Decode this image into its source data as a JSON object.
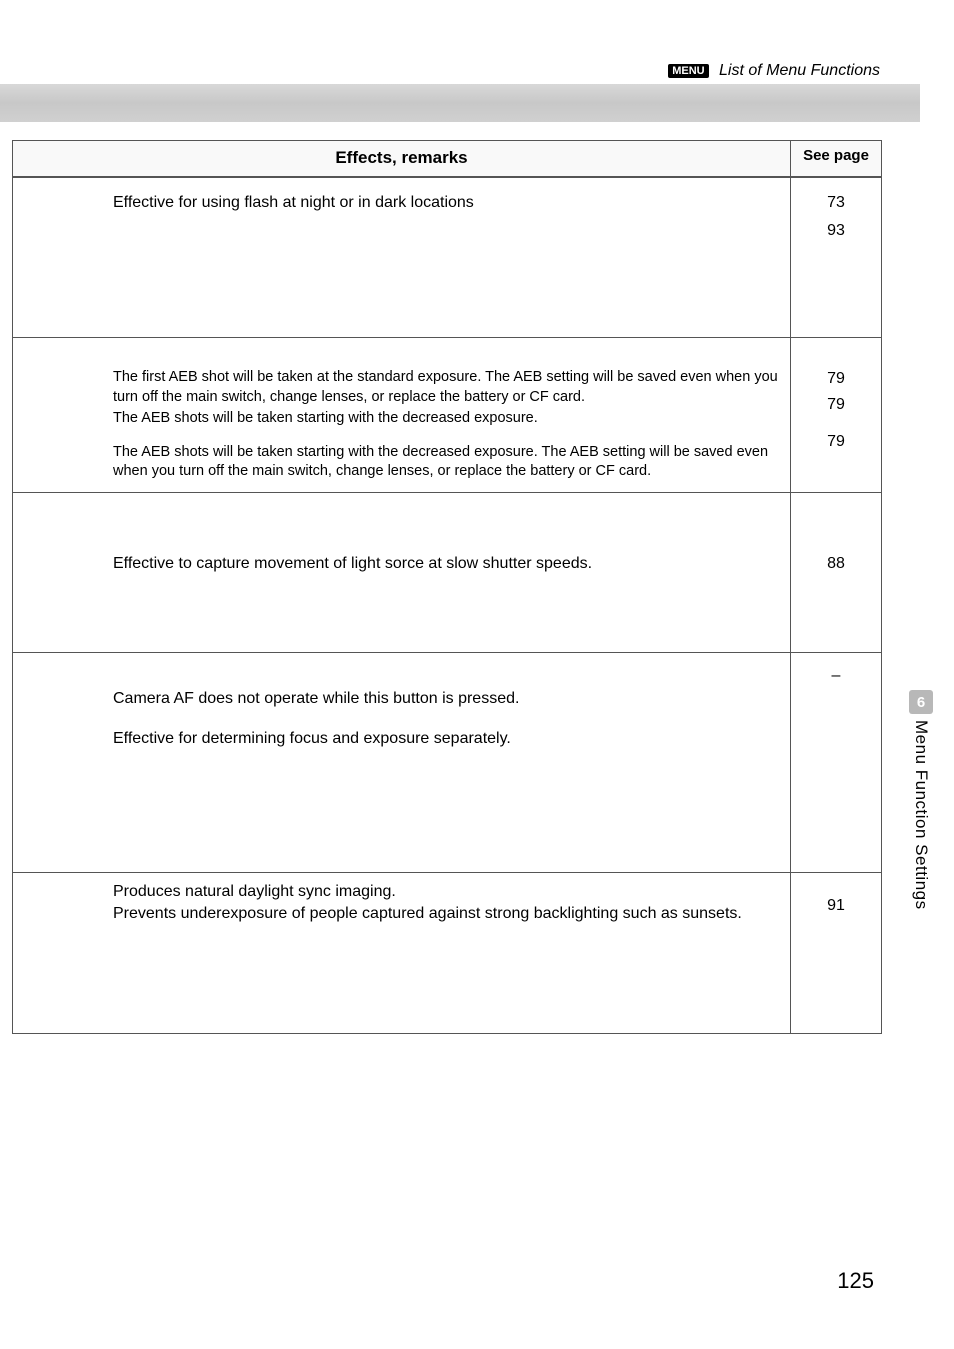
{
  "header": {
    "menu_badge": "MENU",
    "title": "List of Menu Functions"
  },
  "table": {
    "headers": {
      "effects": "Effects, remarks",
      "page": "See page"
    },
    "rows": [
      {
        "effects": [
          "Effective for using flash at night or in dark locations"
        ],
        "pages": [
          "73",
          "93"
        ]
      },
      {
        "effects": [
          "The first AEB shot will be taken at the standard exposure. The AEB setting will be saved even when you turn off the main switch, change lenses, or replace the battery or CF card.",
          "The AEB shots will be taken starting with the decreased exposure.",
          "The AEB shots will be taken starting with the decreased exposure. The AEB setting will be saved even when you turn off the main switch, change lenses, or replace the battery or CF card."
        ],
        "pages": [
          "79",
          "79",
          "79"
        ]
      },
      {
        "effects": [
          "Effective to capture movement of light sorce at slow shutter speeds."
        ],
        "pages": [
          "88"
        ]
      },
      {
        "effects": [
          "Camera AF does not operate while this button is pressed.",
          "Effective for determining focus and exposure separately."
        ],
        "pages": [
          "–"
        ]
      },
      {
        "effects": [
          "Produces natural daylight sync imaging.",
          "Prevents underexposure of people captured against strong backlighting such as sunsets."
        ],
        "pages": [
          "91"
        ]
      }
    ]
  },
  "sidebar": {
    "chapter_number": "6",
    "chapter_title": "Menu Function Settings"
  },
  "page_number": "125"
}
